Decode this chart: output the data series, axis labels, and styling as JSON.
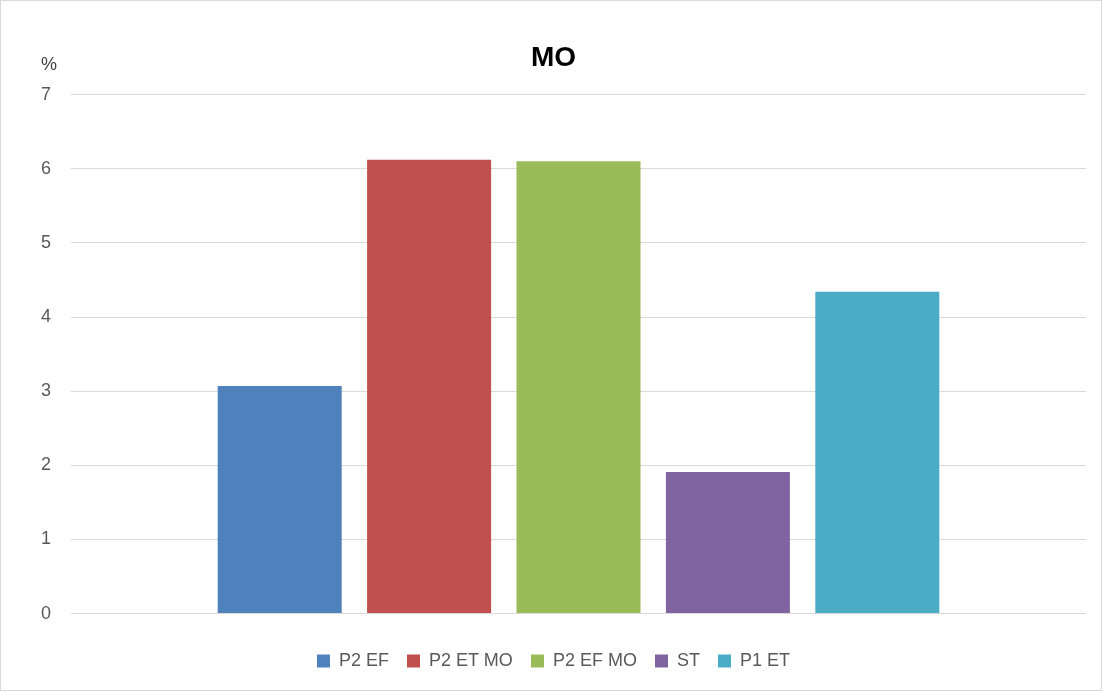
{
  "chart_data": {
    "type": "bar",
    "title": "MO",
    "ylabel": "%",
    "categories": [
      null
    ],
    "series": [
      {
        "name": "P2 EF",
        "color": "#4f81bd",
        "values": [
          3.07
        ]
      },
      {
        "name": "P2 ET MO",
        "color": "#c0504d",
        "values": [
          6.12
        ]
      },
      {
        "name": "P2 EF MO",
        "color": "#9bbb59",
        "values": [
          6.1
        ]
      },
      {
        "name": "ST",
        "color": "#8064a2",
        "values": [
          1.91
        ]
      },
      {
        "name": "P1 ET",
        "color": "#4bacc6",
        "values": [
          4.34
        ]
      }
    ],
    "ylim": [
      0,
      7
    ],
    "yticks": [
      0,
      1,
      2,
      3,
      4,
      5,
      6,
      7
    ],
    "grid": "y",
    "legend": "bottom"
  }
}
